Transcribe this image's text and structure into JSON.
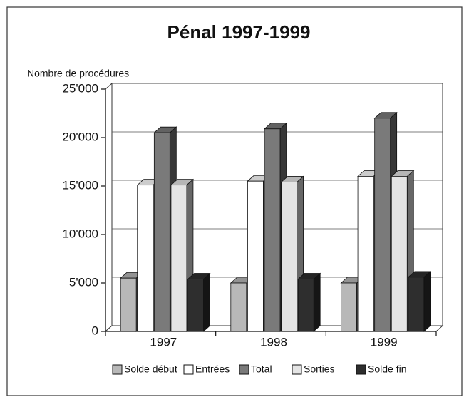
{
  "chart_data": {
    "type": "bar3d",
    "title": "Pénal 1997-1999",
    "y_label": "Nombre de procédures",
    "categories": [
      "1997",
      "1998",
      "1999"
    ],
    "series": [
      {
        "name": "Solde début",
        "color": "#b8b8b8",
        "values": [
          5500,
          5000,
          5000
        ]
      },
      {
        "name": "Entrées",
        "color": "#ffffff",
        "values": [
          15100,
          15500,
          16000
        ]
      },
      {
        "name": "Total",
        "color": "#7a7a7a",
        "values": [
          20500,
          20900,
          22000
        ]
      },
      {
        "name": "Sorties",
        "color": "#e4e4e4",
        "values": [
          15100,
          15400,
          16000
        ]
      },
      {
        "name": "Solde fin",
        "color": "#2e2e2e",
        "values": [
          5400,
          5400,
          5600
        ]
      }
    ],
    "ylim": [
      0,
      25000
    ],
    "yticks": [
      0,
      {
        "value": 5000,
        "label": "5'000"
      },
      {
        "value": 10000,
        "label": "10'000"
      },
      {
        "value": 15000,
        "label": "15'000"
      },
      {
        "value": 20000,
        "label": "20'000"
      },
      {
        "value": 25000,
        "label": "25'000"
      }
    ],
    "grid": true,
    "legend": "bottom"
  }
}
